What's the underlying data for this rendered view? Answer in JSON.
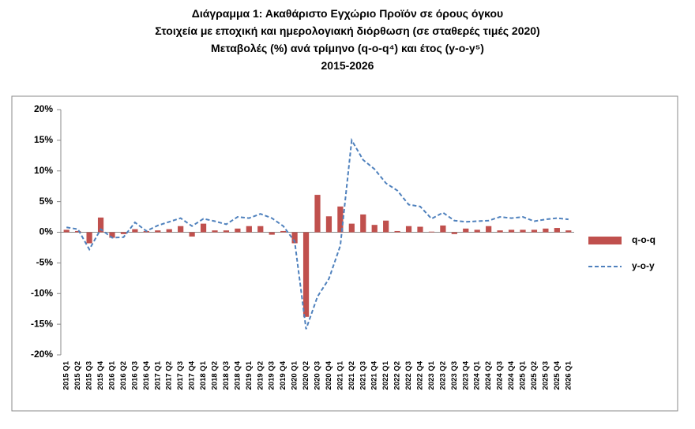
{
  "chart_data": {
    "type": "bar-line",
    "title": [
      "Διάγραμμα 1: Ακαθάριστο Εγχώριο Προϊόν σε όρους όγκου",
      "Στοιχεία με εποχική και ημερολογιακή διόρθωση (σε σταθερές τιμές 2020)",
      "Μεταβολές (%) ανά τρίμηνο (q-o-q⁴) και έτος (y-o-y⁵)",
      "2015-2026"
    ],
    "categories": [
      "2015 Q1",
      "2015 Q2",
      "2015 Q3",
      "2015 Q4",
      "2016 Q1",
      "2016 Q2",
      "2016 Q3",
      "2016 Q4",
      "2017 Q1",
      "2017 Q2",
      "2017 Q3",
      "2017 Q4",
      "2018 Q1",
      "2018 Q2",
      "2018 Q3",
      "2018 Q4",
      "2019 Q1",
      "2019 Q2",
      "2019 Q3",
      "2019 Q4",
      "2020 Q1",
      "2020 Q2",
      "2020 Q3",
      "2020 Q4",
      "2021 Q1",
      "2021 Q2",
      "2021 Q3",
      "2021 Q4",
      "2022 Q1",
      "2022 Q2",
      "2022 Q3",
      "2022 Q4",
      "2023 Q1",
      "2023 Q2",
      "2023 Q3",
      "2023 Q4",
      "2024 Q1",
      "2024 Q2",
      "2024 Q3",
      "2024 Q4",
      "2025 Q1",
      "2025 Q2",
      "2025 Q3",
      "2025 Q4",
      "2026 Q1"
    ],
    "series": [
      {
        "name": "q-o-q",
        "type": "bar",
        "color": "#c0504d",
        "values": [
          0.4,
          0.2,
          -1.8,
          2.4,
          -0.9,
          -0.3,
          0.5,
          0.2,
          0.3,
          0.5,
          1.0,
          -0.7,
          1.4,
          0.3,
          0.3,
          0.6,
          1.0,
          1.0,
          -0.4,
          0.2,
          -1.8,
          -13.8,
          6.1,
          2.6,
          4.2,
          1.4,
          2.9,
          1.2,
          1.9,
          0.2,
          1.0,
          0.9,
          0.1,
          1.1,
          -0.3,
          0.6,
          0.4,
          1.0,
          0.3,
          0.4,
          0.4,
          0.4,
          0.6,
          0.7,
          0.3
        ]
      },
      {
        "name": "y-o-y",
        "type": "line",
        "color": "#4f81bd",
        "values": [
          0.8,
          0.5,
          -2.8,
          0.5,
          -0.9,
          -0.8,
          1.6,
          0.2,
          1.1,
          1.7,
          2.3,
          1.0,
          2.2,
          1.8,
          1.3,
          2.5,
          2.3,
          3.0,
          2.3,
          1.0,
          -1.5,
          -15.8,
          -10.5,
          -7.6,
          -2.2,
          15.0,
          11.8,
          10.3,
          8.0,
          6.8,
          4.5,
          4.2,
          2.2,
          3.2,
          1.9,
          1.7,
          1.8,
          1.9,
          2.5,
          2.3,
          2.5,
          1.8,
          2.1,
          2.3,
          2.1
        ]
      }
    ],
    "ylim": [
      -20,
      20
    ],
    "yticks": [
      {
        "value": -20,
        "label": "-20%"
      },
      {
        "value": -15,
        "label": "-15%"
      },
      {
        "value": -10,
        "label": "-10%"
      },
      {
        "value": -5,
        "label": "-5%"
      },
      {
        "value": 0,
        "label": "0%"
      },
      {
        "value": 5,
        "label": "5%"
      },
      {
        "value": 10,
        "label": "10%"
      },
      {
        "value": 15,
        "label": "15%"
      },
      {
        "value": 20,
        "label": "20%"
      }
    ],
    "grid": false,
    "legend": "right"
  }
}
